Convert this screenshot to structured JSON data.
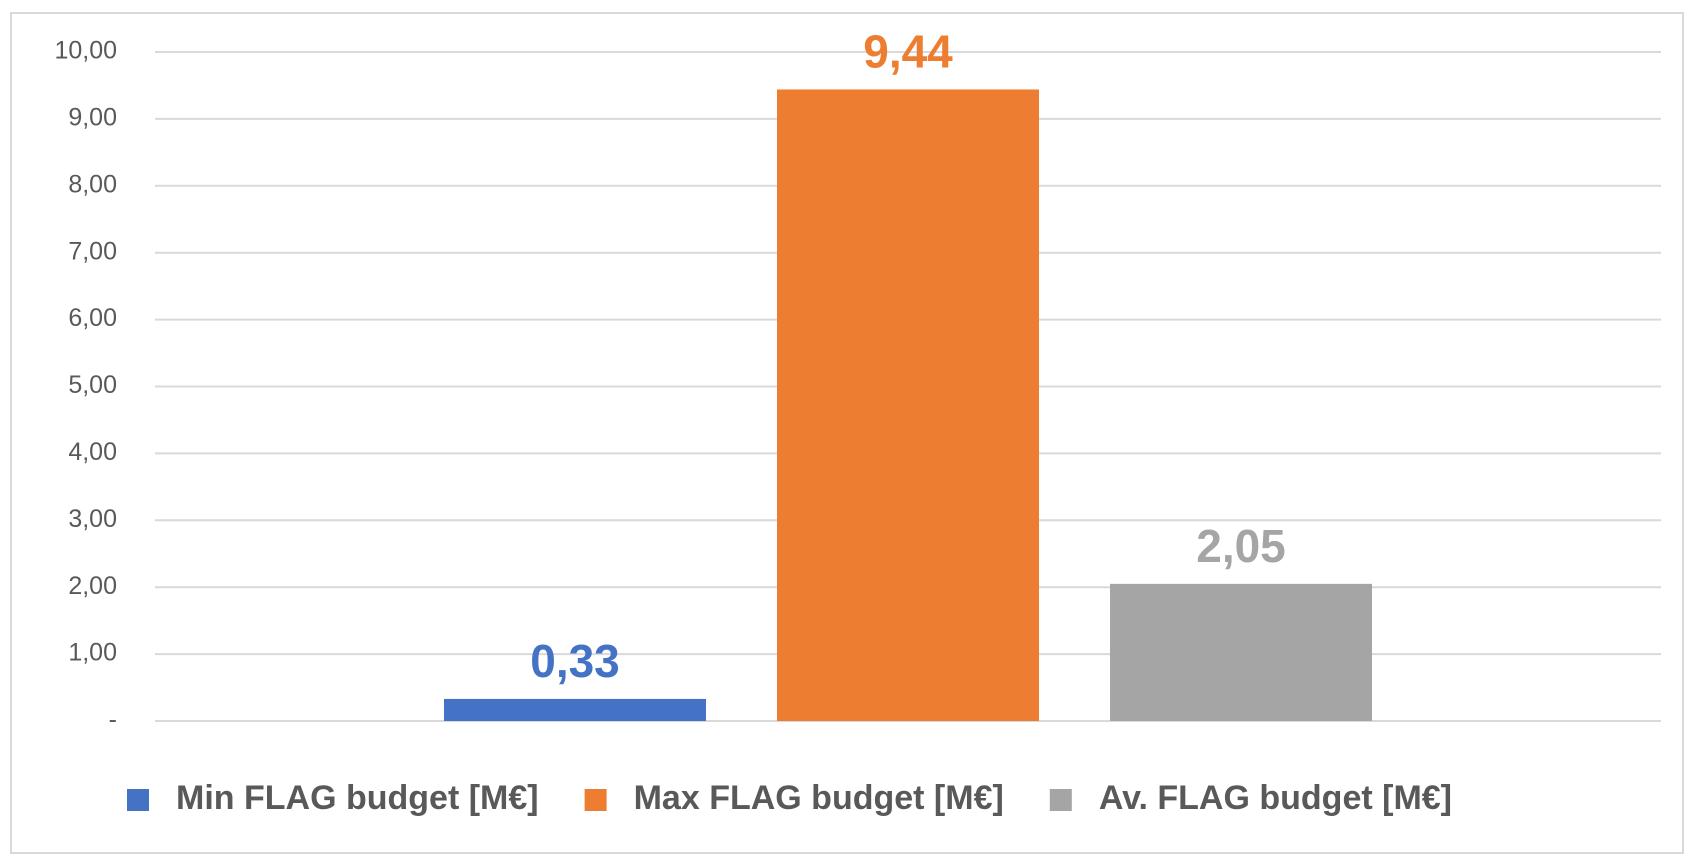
{
  "chart_data": {
    "type": "bar",
    "categories": [
      null
    ],
    "series": [
      {
        "name": "Min FLAG budget [M€]",
        "color": "#4472c4",
        "values": [
          0.33
        ],
        "value_labels": [
          "0,33"
        ]
      },
      {
        "name": "Max FLAG budget [M€]",
        "color": "#ed7d31",
        "values": [
          9.44
        ],
        "value_labels": [
          "9,44"
        ]
      },
      {
        "name": "Av. FLAG budget [M€]",
        "color": "#a5a5a5",
        "values": [
          2.05
        ],
        "value_labels": [
          "2,05"
        ]
      }
    ],
    "ylim": [
      0,
      10
    ],
    "yticks": [
      {
        "value": 0,
        "label": "-"
      },
      {
        "value": 1,
        "label": "1,00"
      },
      {
        "value": 2,
        "label": "2,00"
      },
      {
        "value": 3,
        "label": "3,00"
      },
      {
        "value": 4,
        "label": "4,00"
      },
      {
        "value": 5,
        "label": "5,00"
      },
      {
        "value": 6,
        "label": "6,00"
      },
      {
        "value": 7,
        "label": "7,00"
      },
      {
        "value": 8,
        "label": "8,00"
      },
      {
        "value": 9,
        "label": "9,00"
      },
      {
        "value": 10,
        "label": "10,00"
      }
    ],
    "grid": true,
    "legend": "bottom"
  }
}
